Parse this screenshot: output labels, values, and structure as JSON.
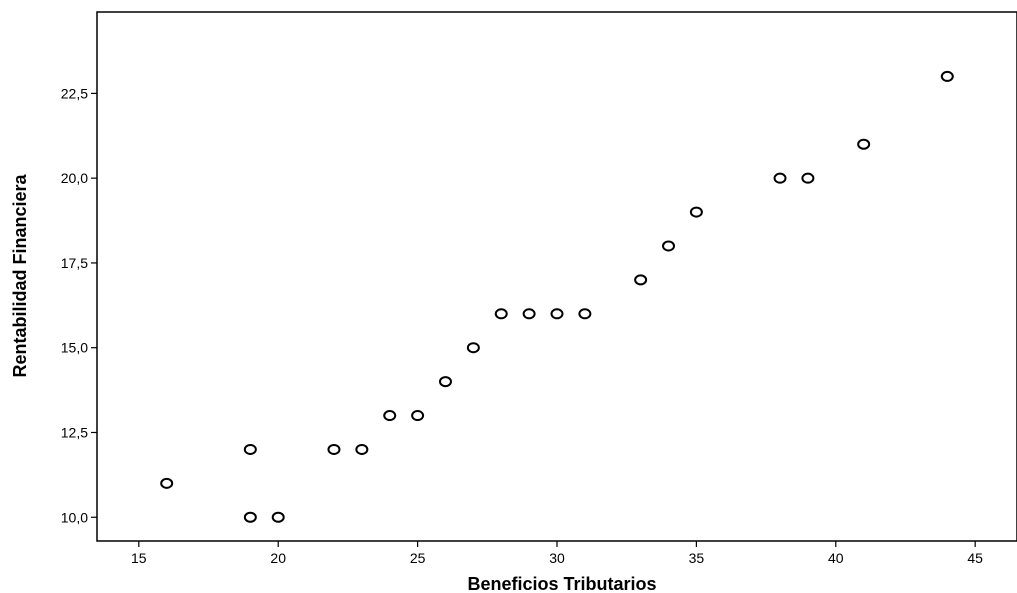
{
  "chart_data": {
    "type": "scatter",
    "title": "",
    "xlabel": "Beneficios Tributarios",
    "ylabel": "Rentabilidad Financiera",
    "xlim": [
      13.5,
      46.5
    ],
    "ylim": [
      9.3,
      24.9
    ],
    "xticks": [
      15,
      20,
      25,
      30,
      35,
      40,
      45
    ],
    "xtick_labels": [
      "15",
      "20",
      "25",
      "30",
      "35",
      "40",
      "45"
    ],
    "yticks": [
      10.0,
      12.5,
      15.0,
      17.5,
      20.0,
      22.5
    ],
    "ytick_labels": [
      "10,0",
      "12,5",
      "15,0",
      "17,5",
      "20,0",
      "22,5"
    ],
    "grid": false,
    "marker": "hollow-circle",
    "marker_color": "#000000",
    "points": [
      {
        "x": 16,
        "y": 11
      },
      {
        "x": 19,
        "y": 12
      },
      {
        "x": 19,
        "y": 10
      },
      {
        "x": 20,
        "y": 10
      },
      {
        "x": 22,
        "y": 12
      },
      {
        "x": 23,
        "y": 12
      },
      {
        "x": 24,
        "y": 13
      },
      {
        "x": 25,
        "y": 13
      },
      {
        "x": 26,
        "y": 14
      },
      {
        "x": 27,
        "y": 15
      },
      {
        "x": 28,
        "y": 16
      },
      {
        "x": 29,
        "y": 16
      },
      {
        "x": 30,
        "y": 16
      },
      {
        "x": 31,
        "y": 16
      },
      {
        "x": 33,
        "y": 17
      },
      {
        "x": 34,
        "y": 18
      },
      {
        "x": 35,
        "y": 19
      },
      {
        "x": 38,
        "y": 20
      },
      {
        "x": 39,
        "y": 20
      },
      {
        "x": 41,
        "y": 21
      },
      {
        "x": 44,
        "y": 23
      }
    ]
  }
}
